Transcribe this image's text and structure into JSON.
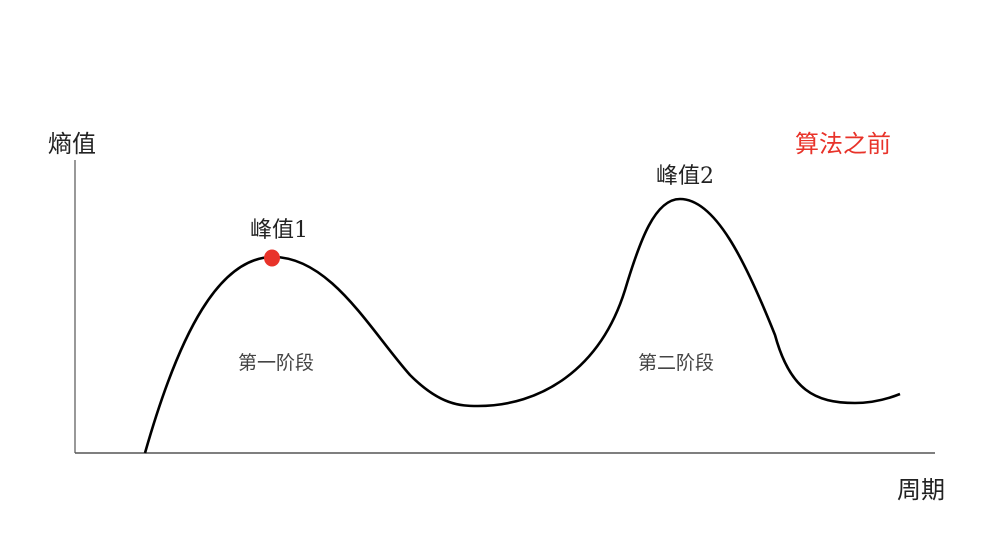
{
  "y_axis_label": "熵值",
  "x_axis_label": "周期",
  "status_label": "算法之前",
  "peak1_label": "峰值1",
  "peak2_label": "峰值2",
  "stage1_label": "第一阶段",
  "stage2_label": "第二阶段",
  "colors": {
    "curve": "#000000",
    "marker": "#e8332a",
    "status": "#e8332a",
    "axis": "#333333"
  }
}
